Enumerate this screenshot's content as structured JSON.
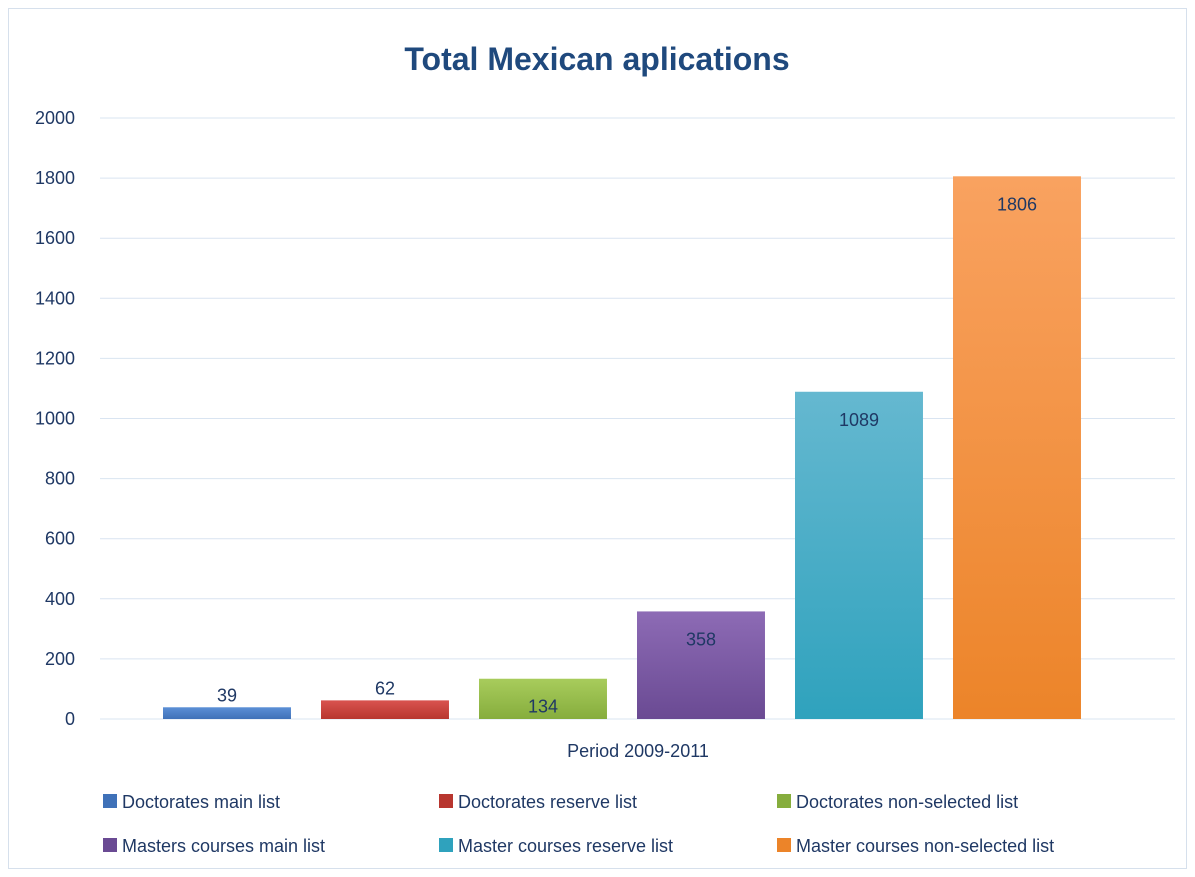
{
  "chart_data": {
    "type": "bar",
    "title": "Total Mexican aplications",
    "categories": [
      "Period 2009-2011"
    ],
    "xlabel": "",
    "ylabel": "",
    "ylim": [
      0,
      2000
    ],
    "ytick_step": 200,
    "yticks": [
      "0",
      "200",
      "400",
      "600",
      "800",
      "1000",
      "1200",
      "1400",
      "1600",
      "1800",
      "2000"
    ],
    "grid": true,
    "legend_position": "bottom",
    "series": [
      {
        "name": "Doctorates main list",
        "values": [
          39
        ],
        "label": "39",
        "color_top": "#5b8fd6",
        "color_bottom": "#3f71b8"
      },
      {
        "name": "Doctorates reserve list",
        "values": [
          62
        ],
        "label": "62",
        "color_top": "#d9534f",
        "color_bottom": "#b8362f"
      },
      {
        "name": "Doctorates non-selected  list",
        "values": [
          134
        ],
        "label": "134",
        "color_top": "#a8cc5c",
        "color_bottom": "#86ad3d"
      },
      {
        "name": "Masters courses main list",
        "values": [
          358
        ],
        "label": "358",
        "color_top": "#8d6bb5",
        "color_bottom": "#6a4a93"
      },
      {
        "name": "Master courses reserve list",
        "values": [
          1089
        ],
        "label": "1089",
        "color_top": "#65b8d0",
        "color_bottom": "#2fa2bd"
      },
      {
        "name": "Master courses non-selected list",
        "values": [
          1806
        ],
        "label": "1806",
        "color_top": "#f9a260",
        "color_bottom": "#ec8429"
      }
    ]
  }
}
